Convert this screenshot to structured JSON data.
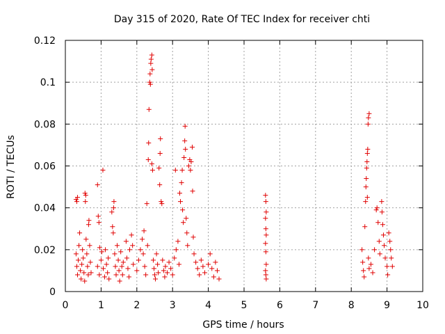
{
  "chart_data": {
    "type": "scatter",
    "title": "Day 315 of 2020, Rate Of TEC Index for receiver chti",
    "xlabel": "GPS time / hours",
    "ylabel": "ROTI / TECUs",
    "xlim": [
      0,
      10
    ],
    "ylim": [
      0,
      0.12
    ],
    "x_ticks": [
      "0",
      "1",
      "2",
      "3",
      "4",
      "5",
      "6",
      "7",
      "8",
      "9",
      "10"
    ],
    "y_ticks": [
      "0",
      "0.02",
      "0.04",
      "0.06",
      "0.08",
      "0.1",
      "0.12"
    ],
    "grid": true,
    "marker": "+",
    "series": [
      {
        "name": "ROTI",
        "color": "#e00000",
        "points": [
          [
            0.3,
            0.044
          ],
          [
            0.32,
            0.043
          ],
          [
            0.34,
            0.045
          ],
          [
            0.3,
            0.018
          ],
          [
            0.32,
            0.012
          ],
          [
            0.34,
            0.008
          ],
          [
            0.36,
            0.015
          ],
          [
            0.38,
            0.022
          ],
          [
            0.4,
            0.028
          ],
          [
            0.42,
            0.01
          ],
          [
            0.44,
            0.006
          ],
          [
            0.46,
            0.013
          ],
          [
            0.48,
            0.02
          ],
          [
            0.5,
            0.016
          ],
          [
            0.52,
            0.009
          ],
          [
            0.54,
            0.005
          ],
          [
            0.55,
            0.047
          ],
          [
            0.57,
            0.046
          ],
          [
            0.56,
            0.043
          ],
          [
            0.58,
            0.025
          ],
          [
            0.6,
            0.018
          ],
          [
            0.62,
            0.012
          ],
          [
            0.64,
            0.008
          ],
          [
            0.66,
            0.034
          ],
          [
            0.65,
            0.032
          ],
          [
            0.68,
            0.022
          ],
          [
            0.7,
            0.014
          ],
          [
            0.72,
            0.009
          ],
          [
            0.9,
            0.051
          ],
          [
            0.92,
            0.036
          ],
          [
            0.94,
            0.033
          ],
          [
            0.96,
            0.021
          ],
          [
            0.9,
            0.012
          ],
          [
            0.95,
            0.008
          ],
          [
            1.0,
            0.015
          ],
          [
            1.02,
            0.019
          ],
          [
            1.05,
            0.058
          ],
          [
            1.06,
            0.011
          ],
          [
            1.1,
            0.007
          ],
          [
            1.12,
            0.02
          ],
          [
            1.15,
            0.013
          ],
          [
            1.18,
            0.009
          ],
          [
            1.2,
            0.016
          ],
          [
            1.22,
            0.006
          ],
          [
            1.3,
            0.038
          ],
          [
            1.32,
            0.031
          ],
          [
            1.34,
            0.028
          ],
          [
            1.36,
            0.043
          ],
          [
            1.35,
            0.04
          ],
          [
            1.38,
            0.018
          ],
          [
            1.4,
            0.012
          ],
          [
            1.42,
            0.008
          ],
          [
            1.45,
            0.022
          ],
          [
            1.48,
            0.015
          ],
          [
            1.5,
            0.01
          ],
          [
            1.52,
            0.005
          ],
          [
            1.55,
            0.019
          ],
          [
            1.58,
            0.012
          ],
          [
            1.6,
            0.008
          ],
          [
            1.62,
            0.014
          ],
          [
            1.7,
            0.024
          ],
          [
            1.72,
            0.016
          ],
          [
            1.75,
            0.011
          ],
          [
            1.78,
            0.007
          ],
          [
            1.8,
            0.02
          ],
          [
            1.85,
            0.027
          ],
          [
            1.88,
            0.022
          ],
          [
            1.9,
            0.013
          ],
          [
            2.0,
            0.01
          ],
          [
            2.05,
            0.015
          ],
          [
            2.1,
            0.02
          ],
          [
            2.15,
            0.025
          ],
          [
            2.18,
            0.018
          ],
          [
            2.2,
            0.029
          ],
          [
            2.22,
            0.012
          ],
          [
            2.25,
            0.008
          ],
          [
            2.28,
            0.042
          ],
          [
            2.3,
            0.022
          ],
          [
            2.32,
            0.063
          ],
          [
            2.33,
            0.071
          ],
          [
            2.34,
            0.087
          ],
          [
            2.36,
            0.1
          ],
          [
            2.37,
            0.104
          ],
          [
            2.38,
            0.099
          ],
          [
            2.39,
            0.109
          ],
          [
            2.4,
            0.111
          ],
          [
            2.42,
            0.113
          ],
          [
            2.43,
            0.106
          ],
          [
            2.42,
            0.061
          ],
          [
            2.44,
            0.058
          ],
          [
            2.46,
            0.015
          ],
          [
            2.48,
            0.011
          ],
          [
            2.5,
            0.008
          ],
          [
            2.52,
            0.006
          ],
          [
            2.55,
            0.018
          ],
          [
            2.58,
            0.013
          ],
          [
            2.6,
            0.009
          ],
          [
            2.62,
            0.059
          ],
          [
            2.64,
            0.051
          ],
          [
            2.65,
            0.066
          ],
          [
            2.66,
            0.073
          ],
          [
            2.68,
            0.043
          ],
          [
            2.7,
            0.042
          ],
          [
            2.72,
            0.015
          ],
          [
            2.75,
            0.01
          ],
          [
            2.78,
            0.007
          ],
          [
            2.8,
            0.012
          ],
          [
            2.85,
            0.009
          ],
          [
            2.9,
            0.014
          ],
          [
            2.95,
            0.011
          ],
          [
            3.0,
            0.008
          ],
          [
            3.05,
            0.016
          ],
          [
            3.08,
            0.058
          ],
          [
            3.1,
            0.02
          ],
          [
            3.15,
            0.024
          ],
          [
            3.18,
            0.013
          ],
          [
            3.2,
            0.047
          ],
          [
            3.22,
            0.043
          ],
          [
            3.25,
            0.052
          ],
          [
            3.27,
            0.058
          ],
          [
            3.28,
            0.039
          ],
          [
            3.3,
            0.033
          ],
          [
            3.32,
            0.064
          ],
          [
            3.34,
            0.072
          ],
          [
            3.35,
            0.079
          ],
          [
            3.36,
            0.068
          ],
          [
            3.38,
            0.035
          ],
          [
            3.4,
            0.028
          ],
          [
            3.42,
            0.022
          ],
          [
            3.45,
            0.06
          ],
          [
            3.48,
            0.063
          ],
          [
            3.5,
            0.058
          ],
          [
            3.52,
            0.062
          ],
          [
            3.55,
            0.069
          ],
          [
            3.56,
            0.048
          ],
          [
            3.58,
            0.026
          ],
          [
            3.6,
            0.018
          ],
          [
            3.65,
            0.014
          ],
          [
            3.7,
            0.011
          ],
          [
            3.75,
            0.008
          ],
          [
            3.8,
            0.015
          ],
          [
            3.85,
            0.012
          ],
          [
            3.9,
            0.009
          ],
          [
            4.0,
            0.013
          ],
          [
            4.05,
            0.018
          ],
          [
            4.1,
            0.011
          ],
          [
            4.15,
            0.007
          ],
          [
            4.2,
            0.014
          ],
          [
            4.25,
            0.01
          ],
          [
            4.3,
            0.006
          ],
          [
            5.6,
            0.046
          ],
          [
            5.61,
            0.043
          ],
          [
            5.62,
            0.038
          ],
          [
            5.6,
            0.035
          ],
          [
            5.61,
            0.03
          ],
          [
            5.62,
            0.027
          ],
          [
            5.6,
            0.023
          ],
          [
            5.61,
            0.019
          ],
          [
            5.62,
            0.013
          ],
          [
            5.6,
            0.01
          ],
          [
            5.61,
            0.008
          ],
          [
            5.62,
            0.006
          ],
          [
            8.3,
            0.02
          ],
          [
            8.32,
            0.014
          ],
          [
            8.34,
            0.01
          ],
          [
            8.36,
            0.007
          ],
          [
            8.38,
            0.031
          ],
          [
            8.4,
            0.043
          ],
          [
            8.41,
            0.05
          ],
          [
            8.42,
            0.054
          ],
          [
            8.43,
            0.059
          ],
          [
            8.44,
            0.062
          ],
          [
            8.45,
            0.066
          ],
          [
            8.46,
            0.068
          ],
          [
            8.47,
            0.08
          ],
          [
            8.48,
            0.083
          ],
          [
            8.5,
            0.085
          ],
          [
            8.45,
            0.045
          ],
          [
            8.48,
            0.016
          ],
          [
            8.5,
            0.011
          ],
          [
            8.55,
            0.013
          ],
          [
            8.6,
            0.009
          ],
          [
            8.65,
            0.02
          ],
          [
            8.7,
            0.039
          ],
          [
            8.72,
            0.04
          ],
          [
            8.75,
            0.033
          ],
          [
            8.78,
            0.024
          ],
          [
            8.8,
            0.018
          ],
          [
            8.85,
            0.043
          ],
          [
            8.86,
            0.038
          ],
          [
            8.88,
            0.032
          ],
          [
            8.9,
            0.027
          ],
          [
            8.92,
            0.022
          ],
          [
            8.95,
            0.016
          ],
          [
            9.0,
            0.012
          ],
          [
            9.02,
            0.008
          ],
          [
            9.05,
            0.028
          ],
          [
            9.08,
            0.024
          ],
          [
            9.1,
            0.02
          ],
          [
            9.12,
            0.016
          ],
          [
            9.15,
            0.012
          ]
        ]
      }
    ]
  }
}
